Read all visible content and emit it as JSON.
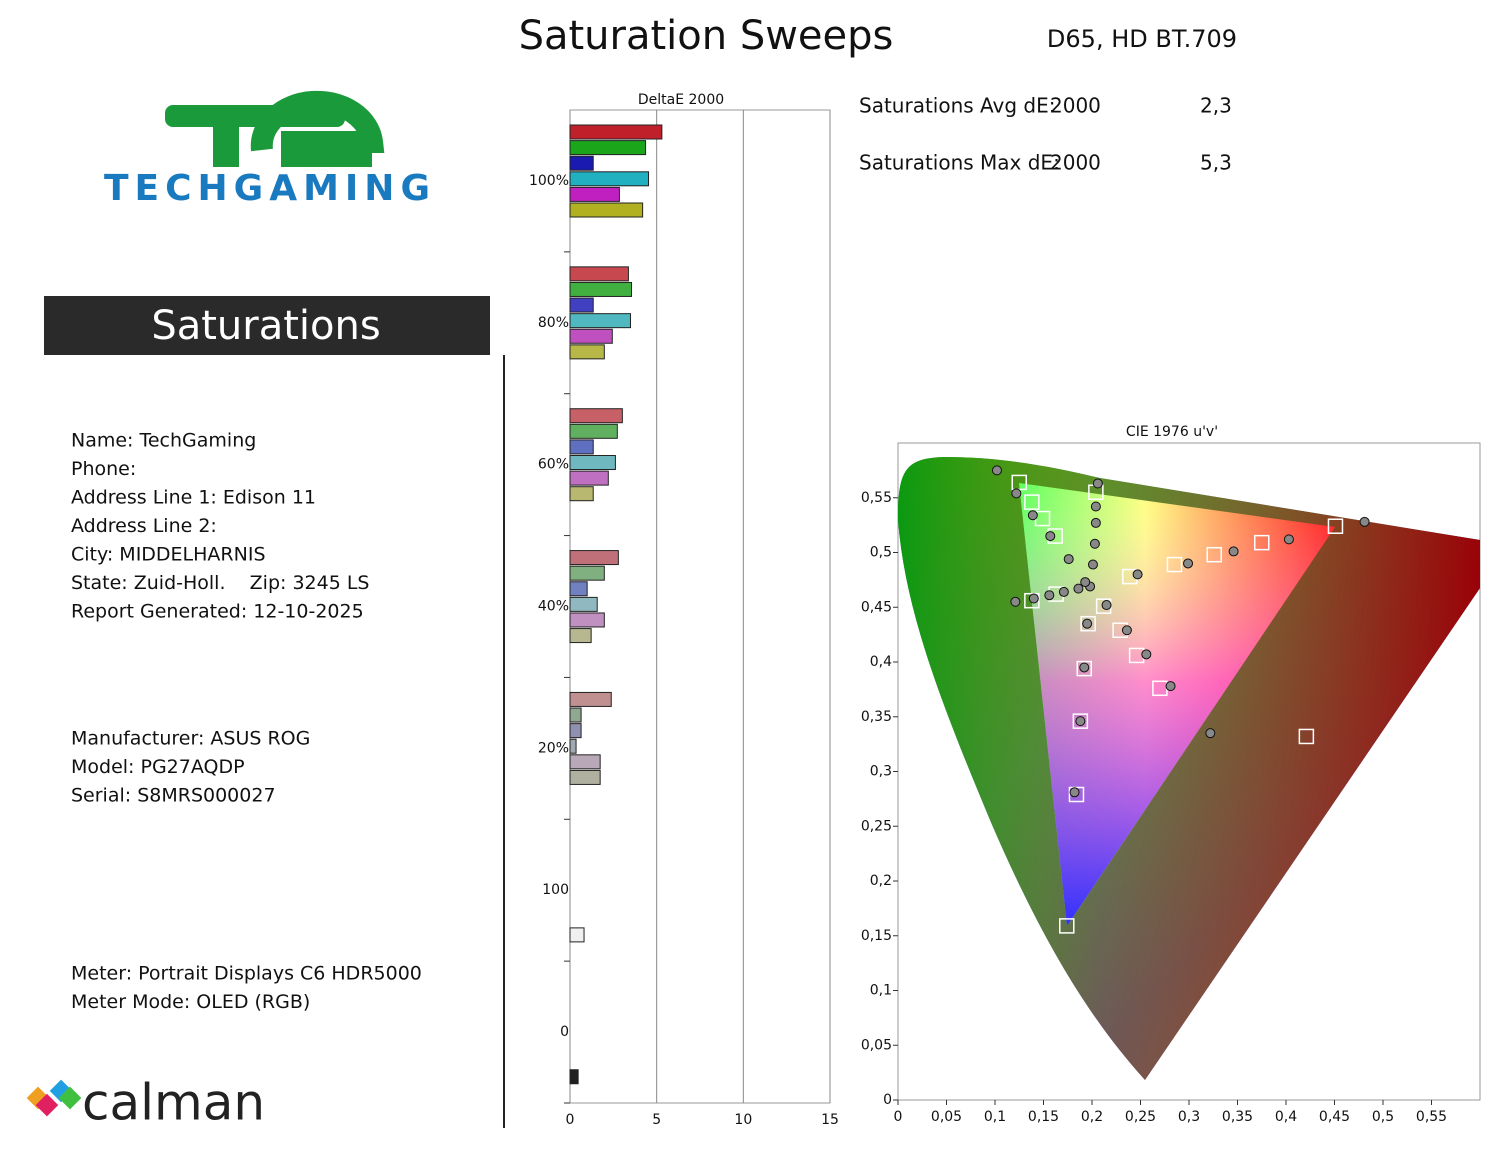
{
  "header": {
    "title": "Saturation Sweeps",
    "subtitle": "D65, HD BT.709"
  },
  "logo": {
    "wordmark": "TECHGAMING",
    "footer": "calman"
  },
  "section": {
    "title": "Saturations"
  },
  "info": {
    "contact": [
      "Name: TechGaming",
      "Phone:",
      "Address Line 1: Edison 11",
      "Address Line 2:",
      "City: MIDDELHARNIS",
      "State: Zuid-Holl.    Zip: 3245 LS",
      "Report Generated: 12-10-2025"
    ],
    "display": [
      "Manufacturer: ASUS ROG",
      "Model: PG27AQDP",
      "Serial: S8MRS000027"
    ],
    "meter": [
      "Meter: Portrait Displays C6 HDR5000",
      "Meter Mode: OLED (RGB)"
    ]
  },
  "stats": [
    {
      "label": "Saturations Avg dE:",
      "standard": "2000",
      "value": "2,3"
    },
    {
      "label": "Saturations Max dE:",
      "standard": "2000",
      "value": "5,3"
    }
  ],
  "chart_data": [
    {
      "type": "bar",
      "orientation": "horizontal",
      "title": "DeltaE 2000",
      "categories": [
        "100%",
        "80%",
        "60%",
        "40%",
        "20%",
        "100",
        "0"
      ],
      "groups": [
        {
          "values": [
            5.3,
            4.36,
            1.34,
            4.53,
            2.85,
            4.19
          ],
          "colors": [
            "#c0202a",
            "#1aa51a",
            "#1a1ab0",
            "#20b0c0",
            "#c020c0",
            "#b0b020"
          ]
        },
        {
          "values": [
            3.37,
            3.55,
            1.34,
            3.49,
            2.44,
            1.98
          ],
          "colors": [
            "#c84850",
            "#40b040",
            "#4040c0",
            "#50b8c0",
            "#c050c0",
            "#b8b848"
          ]
        },
        {
          "values": [
            3.02,
            2.73,
            1.34,
            2.62,
            2.21,
            1.34
          ],
          "colors": [
            "#c86068",
            "#60b060",
            "#6070c0",
            "#70b8c0",
            "#c070c0",
            "#b8b870"
          ]
        },
        {
          "values": [
            2.79,
            1.98,
            0.99,
            1.57,
            1.98,
            1.22
          ],
          "colors": [
            "#c07078",
            "#80b080",
            "#7080c0",
            "#90b8c0",
            "#c090c0",
            "#b8b890"
          ]
        },
        {
          "values": [
            2.38,
            0.64,
            0.64,
            0.35,
            1.74,
            1.74
          ],
          "colors": [
            "#c09090",
            "#90a890",
            "#9090b0",
            "#a0a8b0",
            "#b8a8b8",
            "#b0b0a0"
          ]
        },
        {
          "values": [
            0.81
          ],
          "colors": [
            "#f0f0f0"
          ]
        },
        {
          "values": [
            0.47
          ],
          "colors": [
            "#202020"
          ]
        }
      ],
      "xlim": [
        0,
        15
      ],
      "xticks": [
        0,
        5,
        10,
        15
      ],
      "grid": true
    },
    {
      "type": "scatter",
      "title": "CIE 1976 u'v'",
      "targets": {
        "x": [
          0.125,
          0.138,
          0.149,
          0.162,
          0.204,
          0.451,
          0.375,
          0.326,
          0.285,
          0.239,
          0.138,
          0.163,
          0.421,
          0.27,
          0.246,
          0.229,
          0.212,
          0.174,
          0.184,
          0.188,
          0.192,
          0.196
        ],
        "y": [
          0.564,
          0.546,
          0.531,
          0.515,
          0.555,
          0.524,
          0.509,
          0.498,
          0.489,
          0.478,
          0.456,
          0.462,
          0.332,
          0.376,
          0.406,
          0.429,
          0.451,
          0.159,
          0.279,
          0.346,
          0.394,
          0.435
        ],
        "color": "#ffffff"
      },
      "measurements": {
        "x": [
          0.102,
          0.122,
          0.139,
          0.157,
          0.176,
          0.206,
          0.204,
          0.204,
          0.203,
          0.201,
          0.481,
          0.403,
          0.346,
          0.299,
          0.247,
          0.121,
          0.14,
          0.156,
          0.171,
          0.186,
          0.215,
          0.236,
          0.256,
          0.281,
          0.322,
          0.195,
          0.192,
          0.188,
          0.182,
          0.198,
          0.193
        ],
        "y": [
          0.575,
          0.554,
          0.534,
          0.515,
          0.494,
          0.563,
          0.542,
          0.527,
          0.508,
          0.489,
          0.528,
          0.512,
          0.501,
          0.49,
          0.48,
          0.455,
          0.458,
          0.461,
          0.464,
          0.467,
          0.452,
          0.429,
          0.407,
          0.378,
          0.335,
          0.435,
          0.395,
          0.346,
          0.281,
          0.469,
          0.473
        ],
        "color": "#888888"
      },
      "xlim": [
        0,
        0.6
      ],
      "ylim": [
        0,
        0.6
      ],
      "xticks": [
        0,
        {
          "value": 0.05,
          "label": "0,05"
        },
        {
          "value": 0.1,
          "label": "0,1"
        },
        {
          "value": 0.15,
          "label": "0,15"
        },
        {
          "value": 0.2,
          "label": "0,2"
        },
        {
          "value": 0.25,
          "label": "0,25"
        },
        {
          "value": 0.3,
          "label": "0,3"
        },
        {
          "value": 0.35,
          "label": "0,35"
        },
        {
          "value": 0.4,
          "label": "0,4"
        },
        {
          "value": 0.45,
          "label": "0,45"
        },
        {
          "value": 0.5,
          "label": "0,5"
        },
        {
          "value": 0.55,
          "label": "0,55"
        }
      ],
      "yticks": [
        0,
        {
          "value": 0.05,
          "label": "0,05"
        },
        {
          "value": 0.1,
          "label": "0,1"
        },
        {
          "value": 0.15,
          "label": "0,15"
        },
        {
          "value": 0.2,
          "label": "0,2"
        },
        {
          "value": 0.25,
          "label": "0,25"
        },
        {
          "value": 0.3,
          "label": "0,3"
        },
        {
          "value": 0.35,
          "label": "0,35"
        },
        {
          "value": 0.4,
          "label": "0,4"
        },
        {
          "value": 0.45,
          "label": "0,45"
        },
        {
          "value": 0.5,
          "label": "0,5"
        },
        {
          "value": 0.55,
          "label": "0,55"
        }
      ]
    }
  ]
}
